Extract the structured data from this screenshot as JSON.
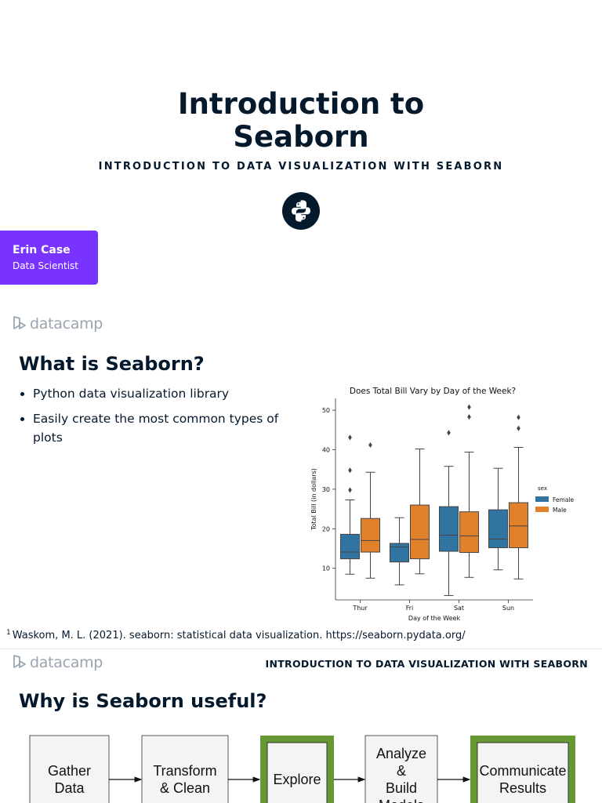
{
  "title_slide": {
    "title_line1": "Introduction to",
    "title_line2": "Seaborn",
    "subtitle": "INTRODUCTION TO DATA VISUALIZATION WITH SEABORN",
    "author_name": "Erin Case",
    "author_role": "Data Scientist"
  },
  "brand": {
    "name": "datacamp",
    "accent": "#7933ff",
    "navy": "#05192d"
  },
  "slide2": {
    "heading": "What is Seaborn?",
    "bullets": [
      "Python data visualization library",
      "Easily create the most common types of plots"
    ],
    "footnote_num": "1",
    "footnote": "Waskom, M. L. (2021). seaborn: statistical data visualization. https://seaborn.pydata.org/"
  },
  "chart_data": {
    "type": "box",
    "title": "Does Total Bill Vary by Day of the Week?",
    "xlabel": "Day of the Week",
    "ylabel": "Total Bill (in dollars)",
    "categories": [
      "Thur",
      "Fri",
      "Sat",
      "Sun"
    ],
    "yticks": [
      10,
      20,
      30,
      40,
      50
    ],
    "ylim": [
      2,
      53
    ],
    "legend": {
      "title": "sex",
      "placement": "right"
    },
    "series": [
      {
        "name": "Female",
        "color": "#3274a1",
        "boxes": [
          {
            "whislo": 8.5,
            "q1": 12.4,
            "median": 14.1,
            "q3": 18.6,
            "whishi": 27.3,
            "fliers": [
              43.1,
              34.8,
              29.8
            ]
          },
          {
            "whislo": 5.8,
            "q1": 11.6,
            "median": 15.4,
            "q3": 16.3,
            "whishi": 22.8,
            "fliers": []
          },
          {
            "whislo": 3.1,
            "q1": 14.3,
            "median": 18.4,
            "q3": 25.6,
            "whishi": 35.8,
            "fliers": [
              44.3
            ]
          },
          {
            "whislo": 9.6,
            "q1": 15.2,
            "median": 17.4,
            "q3": 24.8,
            "whishi": 35.3,
            "fliers": []
          }
        ]
      },
      {
        "name": "Male",
        "color": "#e1812c",
        "boxes": [
          {
            "whislo": 7.5,
            "q1": 14.1,
            "median": 17.0,
            "q3": 22.6,
            "whishi": 34.3,
            "fliers": [
              41.2
            ]
          },
          {
            "whislo": 8.6,
            "q1": 12.4,
            "median": 17.3,
            "q3": 26.0,
            "whishi": 40.2,
            "fliers": []
          },
          {
            "whislo": 7.7,
            "q1": 14.0,
            "median": 18.2,
            "q3": 24.3,
            "whishi": 39.4,
            "fliers": [
              48.3,
              50.8
            ]
          },
          {
            "whislo": 7.3,
            "q1": 15.2,
            "median": 20.7,
            "q3": 26.6,
            "whishi": 40.6,
            "fliers": [
              45.4,
              48.2
            ]
          }
        ]
      }
    ]
  },
  "slide3": {
    "header": "INTRODUCTION TO DATA VISUALIZATION WITH SEABORN",
    "heading": "Why is Seaborn useful?",
    "flow_steps": [
      {
        "lines": [
          "Gather",
          "Data"
        ],
        "highlight": false
      },
      {
        "lines": [
          "Transform",
          "& Clean"
        ],
        "highlight": false
      },
      {
        "lines": [
          "Explore"
        ],
        "highlight": true
      },
      {
        "lines": [
          "Analyze",
          "&",
          "Build",
          "Models"
        ],
        "highlight": false
      },
      {
        "lines": [
          "Communicate",
          "Results"
        ],
        "highlight": true
      }
    ],
    "highlight_color": "#669933"
  }
}
